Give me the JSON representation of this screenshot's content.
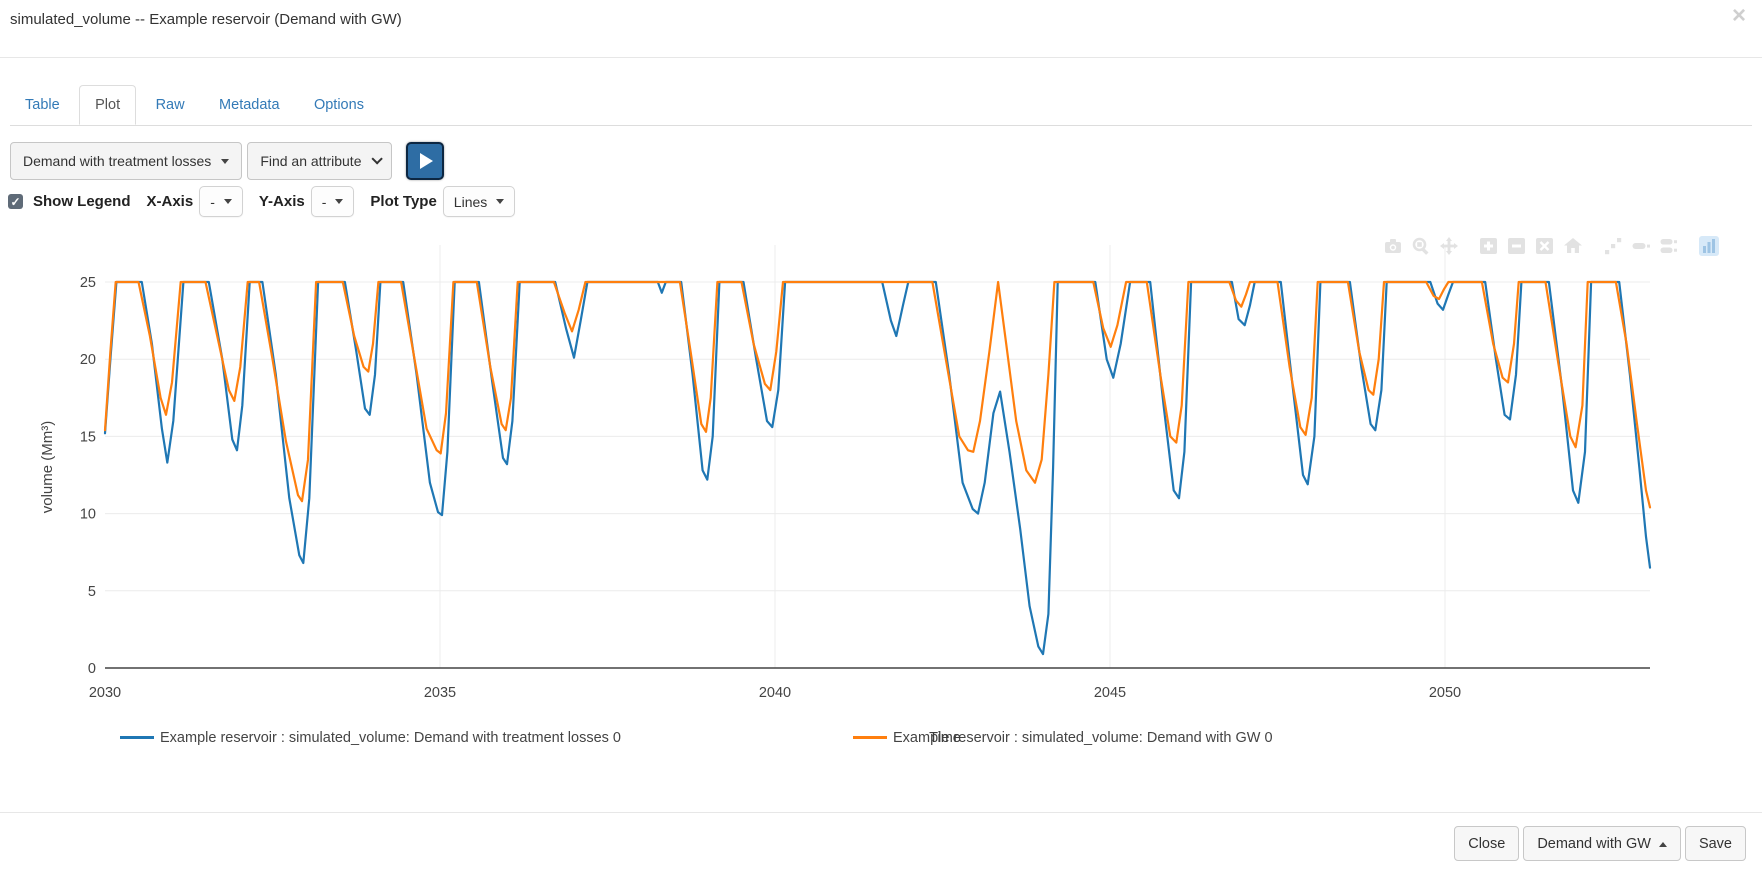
{
  "modal": {
    "title": "simulated_volume -- Example reservoir (Demand with GW)",
    "close_icon": "×"
  },
  "tabs": [
    {
      "label": "Table",
      "active": false
    },
    {
      "label": "Plot",
      "active": true
    },
    {
      "label": "Raw",
      "active": false
    },
    {
      "label": "Metadata",
      "active": false
    },
    {
      "label": "Options",
      "active": false
    }
  ],
  "toolbar": {
    "scenario_dropdown_value": "Demand with treatment losses",
    "attribute_select_value": "Find an attribute",
    "play_button": "run-plot"
  },
  "controls": {
    "show_legend_label": "Show Legend",
    "show_legend_checked": "✓",
    "x_axis_label": "X-Axis",
    "x_axis_value": "-",
    "y_axis_label": "Y-Axis",
    "y_axis_value": "-",
    "plot_type_label": "Plot Type",
    "plot_type_value": "Lines"
  },
  "modebar": {
    "icons": [
      "camera-icon",
      "zoom-icon",
      "pan-icon",
      "zoom-in-icon",
      "zoom-out-icon",
      "autoscale-icon",
      "reset-axes-icon",
      "spikelines-icon",
      "hover-closest-icon",
      "hover-compare-icon",
      "plotly-logo-icon"
    ],
    "groups_end": [
      2,
      6,
      9
    ]
  },
  "chart_data": {
    "type": "line",
    "title": "",
    "xlabel": "Time",
    "ylabel": "volume (Mm³)",
    "xlim": [
      2030,
      2053.1
    ],
    "ylim": [
      0,
      27.4
    ],
    "xticks": [
      2030,
      2035,
      2040,
      2045,
      2050
    ],
    "yticks": [
      0,
      5,
      10,
      15,
      20,
      25
    ],
    "grid": true,
    "legend_position": "bottom-horizontal",
    "series": [
      {
        "name": "Example reservoir : simulated_volume: Demand with treatment losses 0",
        "color": "#1f77b4",
        "points": [
          [
            2030.0,
            15.2
          ],
          [
            2030.08,
            20
          ],
          [
            2030.17,
            25
          ],
          [
            2030.55,
            25
          ],
          [
            2030.7,
            21
          ],
          [
            2030.85,
            15.5
          ],
          [
            2030.93,
            13.3
          ],
          [
            2031.02,
            16
          ],
          [
            2031.17,
            25
          ],
          [
            2031.55,
            25
          ],
          [
            2031.75,
            20
          ],
          [
            2031.9,
            14.8
          ],
          [
            2031.97,
            14.1
          ],
          [
            2032.05,
            17
          ],
          [
            2032.16,
            25
          ],
          [
            2032.35,
            25
          ],
          [
            2032.55,
            19
          ],
          [
            2032.75,
            11
          ],
          [
            2032.9,
            7.3
          ],
          [
            2032.96,
            6.8
          ],
          [
            2033.05,
            11
          ],
          [
            2033.18,
            25
          ],
          [
            2033.58,
            25
          ],
          [
            2033.75,
            20.5
          ],
          [
            2033.88,
            16.8
          ],
          [
            2033.95,
            16.4
          ],
          [
            2034.03,
            19
          ],
          [
            2034.11,
            25
          ],
          [
            2034.45,
            25
          ],
          [
            2034.65,
            19
          ],
          [
            2034.85,
            12
          ],
          [
            2034.97,
            10.1
          ],
          [
            2035.03,
            9.9
          ],
          [
            2035.11,
            14
          ],
          [
            2035.22,
            25
          ],
          [
            2035.58,
            25
          ],
          [
            2035.78,
            18.5
          ],
          [
            2035.94,
            13.6
          ],
          [
            2036.0,
            13.2
          ],
          [
            2036.08,
            16
          ],
          [
            2036.19,
            25
          ],
          [
            2036.72,
            25
          ],
          [
            2036.88,
            22
          ],
          [
            2037.0,
            20.1
          ],
          [
            2037.1,
            22.5
          ],
          [
            2037.2,
            25
          ],
          [
            2038.25,
            25
          ],
          [
            2038.31,
            24.3
          ],
          [
            2038.37,
            25
          ],
          [
            2038.6,
            25
          ],
          [
            2038.77,
            19
          ],
          [
            2038.92,
            12.8
          ],
          [
            2038.99,
            12.2
          ],
          [
            2039.07,
            15
          ],
          [
            2039.17,
            25
          ],
          [
            2039.53,
            25
          ],
          [
            2039.72,
            20
          ],
          [
            2039.88,
            16
          ],
          [
            2039.96,
            15.6
          ],
          [
            2040.05,
            18
          ],
          [
            2040.15,
            25
          ],
          [
            2041.6,
            25
          ],
          [
            2041.73,
            22.5
          ],
          [
            2041.81,
            21.5
          ],
          [
            2041.91,
            23.5
          ],
          [
            2041.99,
            25
          ],
          [
            2042.4,
            25
          ],
          [
            2042.6,
            19
          ],
          [
            2042.8,
            12
          ],
          [
            2042.95,
            10.3
          ],
          [
            2043.03,
            10.0
          ],
          [
            2043.13,
            12
          ],
          [
            2043.26,
            16.5
          ],
          [
            2043.36,
            17.9
          ],
          [
            2043.5,
            14
          ],
          [
            2043.66,
            9
          ],
          [
            2043.8,
            4
          ],
          [
            2043.93,
            1.4
          ],
          [
            2044.0,
            0.9
          ],
          [
            2044.08,
            3.5
          ],
          [
            2044.15,
            13
          ],
          [
            2044.22,
            25
          ],
          [
            2044.78,
            25
          ],
          [
            2044.95,
            20
          ],
          [
            2045.05,
            18.8
          ],
          [
            2045.16,
            21
          ],
          [
            2045.3,
            25
          ],
          [
            2045.6,
            25
          ],
          [
            2045.8,
            17
          ],
          [
            2045.95,
            11.5
          ],
          [
            2046.03,
            11.0
          ],
          [
            2046.11,
            14
          ],
          [
            2046.21,
            25
          ],
          [
            2046.82,
            25
          ],
          [
            2046.92,
            22.6
          ],
          [
            2047.01,
            22.2
          ],
          [
            2047.09,
            23.5
          ],
          [
            2047.16,
            25
          ],
          [
            2047.55,
            25
          ],
          [
            2047.72,
            18.5
          ],
          [
            2047.88,
            12.5
          ],
          [
            2047.95,
            11.9
          ],
          [
            2048.05,
            15
          ],
          [
            2048.14,
            25
          ],
          [
            2048.58,
            25
          ],
          [
            2048.75,
            19.5
          ],
          [
            2048.89,
            15.8
          ],
          [
            2048.96,
            15.4
          ],
          [
            2049.05,
            18
          ],
          [
            2049.13,
            25
          ],
          [
            2049.78,
            25
          ],
          [
            2049.89,
            23.6
          ],
          [
            2049.97,
            23.2
          ],
          [
            2050.05,
            24.2
          ],
          [
            2050.12,
            25
          ],
          [
            2050.6,
            25
          ],
          [
            2050.76,
            20
          ],
          [
            2050.89,
            16.4
          ],
          [
            2050.97,
            16.1
          ],
          [
            2051.06,
            19
          ],
          [
            2051.14,
            25
          ],
          [
            2051.55,
            25
          ],
          [
            2051.75,
            18
          ],
          [
            2051.91,
            11.5
          ],
          [
            2051.99,
            10.7
          ],
          [
            2052.09,
            14
          ],
          [
            2052.18,
            25
          ],
          [
            2052.6,
            25
          ],
          [
            2052.76,
            19
          ],
          [
            2052.9,
            13
          ],
          [
            2053.0,
            8.5
          ],
          [
            2053.06,
            6.5
          ]
        ]
      },
      {
        "name": "Example reservoir : simulated_volume: Demand with GW 0",
        "color": "#ff7f0e",
        "points": [
          [
            2030.0,
            15.4
          ],
          [
            2030.08,
            20.5
          ],
          [
            2030.16,
            25
          ],
          [
            2030.5,
            25
          ],
          [
            2030.67,
            21.5
          ],
          [
            2030.83,
            17.5
          ],
          [
            2030.91,
            16.4
          ],
          [
            2031.0,
            18.5
          ],
          [
            2031.13,
            25
          ],
          [
            2031.5,
            25
          ],
          [
            2031.7,
            21
          ],
          [
            2031.85,
            18
          ],
          [
            2031.93,
            17.3
          ],
          [
            2032.02,
            19.5
          ],
          [
            2032.13,
            25
          ],
          [
            2032.3,
            25
          ],
          [
            2032.5,
            20
          ],
          [
            2032.7,
            14.7
          ],
          [
            2032.88,
            11.2
          ],
          [
            2032.94,
            10.8
          ],
          [
            2033.03,
            13.5
          ],
          [
            2033.15,
            25
          ],
          [
            2033.55,
            25
          ],
          [
            2033.72,
            21.5
          ],
          [
            2033.86,
            19.5
          ],
          [
            2033.93,
            19.2
          ],
          [
            2034.0,
            21
          ],
          [
            2034.08,
            25
          ],
          [
            2034.42,
            25
          ],
          [
            2034.6,
            20.5
          ],
          [
            2034.8,
            15.5
          ],
          [
            2034.95,
            14.1
          ],
          [
            2035.01,
            13.9
          ],
          [
            2035.09,
            16.5
          ],
          [
            2035.2,
            25
          ],
          [
            2035.55,
            25
          ],
          [
            2035.75,
            19.5
          ],
          [
            2035.92,
            15.8
          ],
          [
            2035.98,
            15.4
          ],
          [
            2036.06,
            17.5
          ],
          [
            2036.16,
            25
          ],
          [
            2036.7,
            25
          ],
          [
            2036.86,
            23
          ],
          [
            2036.97,
            21.8
          ],
          [
            2037.07,
            23.2
          ],
          [
            2037.17,
            25
          ],
          [
            2038.58,
            25
          ],
          [
            2038.74,
            20.5
          ],
          [
            2038.9,
            15.8
          ],
          [
            2038.97,
            15.3
          ],
          [
            2039.04,
            17.5
          ],
          [
            2039.14,
            25
          ],
          [
            2039.5,
            25
          ],
          [
            2039.68,
            21
          ],
          [
            2039.85,
            18.4
          ],
          [
            2039.93,
            18.0
          ],
          [
            2040.02,
            20.5
          ],
          [
            2040.12,
            25
          ],
          [
            2042.35,
            25
          ],
          [
            2042.55,
            20
          ],
          [
            2042.75,
            15
          ],
          [
            2042.88,
            14.1
          ],
          [
            2042.96,
            14.0
          ],
          [
            2043.06,
            16
          ],
          [
            2043.2,
            20.5
          ],
          [
            2043.33,
            25
          ],
          [
            2043.45,
            21
          ],
          [
            2043.6,
            16
          ],
          [
            2043.75,
            12.8
          ],
          [
            2043.88,
            12.0
          ],
          [
            2043.98,
            13.5
          ],
          [
            2044.08,
            19
          ],
          [
            2044.17,
            25
          ],
          [
            2044.75,
            25
          ],
          [
            2044.9,
            22
          ],
          [
            2045.01,
            20.8
          ],
          [
            2045.11,
            22.2
          ],
          [
            2045.24,
            25
          ],
          [
            2045.55,
            25
          ],
          [
            2045.75,
            19
          ],
          [
            2045.9,
            15
          ],
          [
            2045.99,
            14.6
          ],
          [
            2046.07,
            17
          ],
          [
            2046.17,
            25
          ],
          [
            2046.78,
            25
          ],
          [
            2046.88,
            23.8
          ],
          [
            2046.96,
            23.4
          ],
          [
            2047.03,
            24.2
          ],
          [
            2047.09,
            25
          ],
          [
            2047.5,
            25
          ],
          [
            2047.68,
            19.5
          ],
          [
            2047.84,
            15.6
          ],
          [
            2047.92,
            15.1
          ],
          [
            2048.01,
            17.5
          ],
          [
            2048.1,
            25
          ],
          [
            2048.55,
            25
          ],
          [
            2048.72,
            20.5
          ],
          [
            2048.86,
            18.0
          ],
          [
            2048.93,
            17.7
          ],
          [
            2049.01,
            20
          ],
          [
            2049.09,
            25
          ],
          [
            2049.72,
            25
          ],
          [
            2049.83,
            24.1
          ],
          [
            2049.91,
            23.9
          ],
          [
            2049.98,
            24.5
          ],
          [
            2050.05,
            25
          ],
          [
            2050.55,
            25
          ],
          [
            2050.72,
            21
          ],
          [
            2050.86,
            18.8
          ],
          [
            2050.94,
            18.5
          ],
          [
            2051.03,
            21
          ],
          [
            2051.1,
            25
          ],
          [
            2051.5,
            25
          ],
          [
            2051.7,
            19.5
          ],
          [
            2051.87,
            15.0
          ],
          [
            2051.95,
            14.3
          ],
          [
            2052.05,
            17
          ],
          [
            2052.13,
            25
          ],
          [
            2052.55,
            25
          ],
          [
            2052.71,
            21
          ],
          [
            2052.86,
            16
          ],
          [
            2053.0,
            11.5
          ],
          [
            2053.06,
            10.4
          ]
        ]
      }
    ]
  },
  "footer": {
    "close_label": "Close",
    "scenario_label": "Demand with GW",
    "save_label": "Save"
  }
}
